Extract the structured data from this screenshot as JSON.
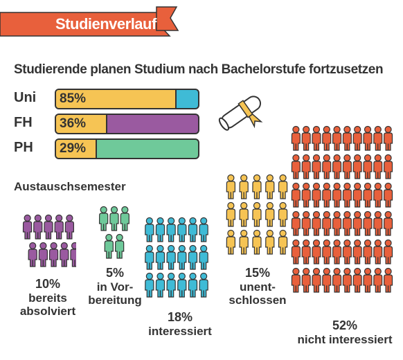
{
  "header": {
    "title": "Studienverlauf"
  },
  "continuation": {
    "title": "Studierende planen Studium nach Bachelorstufe fortzusetzen",
    "rows": [
      {
        "label": "Uni",
        "value": 85,
        "value_label": "85%",
        "rest_color": "#3fbbd6"
      },
      {
        "label": "FH",
        "value": 36,
        "value_label": "36%",
        "rest_color": "#9a5aa0"
      },
      {
        "label": "PH",
        "value": 29,
        "value_label": "29%",
        "rest_color": "#6fc99a"
      }
    ],
    "fill_color": "#f6c454"
  },
  "exchange": {
    "title": "Austauschsemester",
    "groups": [
      {
        "pct": "10%",
        "label": "bereits\nabsolviert",
        "value": 10,
        "color": "#9a5aa0"
      },
      {
        "pct": "5%",
        "label": "in Vor-\nbereitung",
        "value": 5,
        "color": "#6fc99a"
      },
      {
        "pct": "18%",
        "label": "interessiert",
        "value": 18,
        "color": "#3fbbd6"
      },
      {
        "pct": "15%",
        "label": "unent-\nschlossen",
        "value": 15,
        "color": "#f6c454"
      },
      {
        "pct": "52%",
        "label": "nicht interessiert",
        "value": 52,
        "color": "#e8603c"
      }
    ]
  },
  "chart_data": [
    {
      "type": "bar",
      "title": "Studierende planen Studium nach Bachelorstufe fortzusetzen",
      "categories": [
        "Uni",
        "FH",
        "PH"
      ],
      "values": [
        85,
        36,
        29
      ],
      "ylim": [
        0,
        100
      ]
    },
    {
      "type": "pie",
      "title": "Austauschsemester",
      "categories": [
        "bereits absolviert",
        "in Vorbereitung",
        "interessiert",
        "unentschlossen",
        "nicht interessiert"
      ],
      "values": [
        10,
        5,
        18,
        15,
        52
      ]
    }
  ],
  "colors": {
    "banner": "#e8603c",
    "outline": "#333333"
  }
}
